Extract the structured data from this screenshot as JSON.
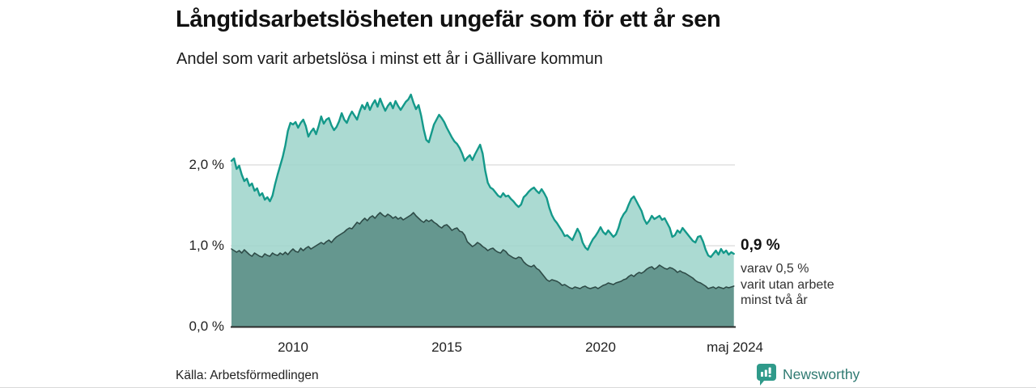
{
  "header": {
    "title": "Långtidsarbetslösheten ungefär som för ett år sen",
    "subtitle": "Andel som varit arbetslösa i minst ett år i Gällivare kommun"
  },
  "annotation": {
    "value": "0,9 %",
    "line1": "varav 0,5 %",
    "line2": "varit utan arbete",
    "line3": "minst två år"
  },
  "source": {
    "label": "Källa: Arbetsförmedlingen"
  },
  "branding": {
    "name": "Newsworthy"
  },
  "colors": {
    "accent_teal": "#14998a",
    "area_light": "#9cd3ca",
    "area_dark": "#61948b",
    "line_dark": "#2e4b47",
    "grid": "#d9d9d9",
    "axis": "#2b2b2b",
    "brand_teal": "#2f7a72",
    "brand_icon": "#2f9a8a"
  },
  "chart_data": {
    "type": "area",
    "title": "Långtidsarbetslösheten ungefär som för ett år sen",
    "subtitle": "Andel som varit arbetslösa i minst ett år i Gällivare kommun",
    "unit": "%",
    "grid": true,
    "legend": "none (annotated at line end)",
    "x_start_year": 2008.0,
    "x_step_months": 1,
    "x_end_label": "maj 2024",
    "xlim": [
      2008.0,
      2024.417
    ],
    "ylim": [
      0,
      2.95
    ],
    "y_ticks": [
      {
        "label": "0,0 %",
        "value": 0
      },
      {
        "label": "1,0 %",
        "value": 1
      },
      {
        "label": "2,0 %",
        "value": 2
      }
    ],
    "x_ticks": [
      {
        "label": "2010",
        "year": 2010
      },
      {
        "label": "2015",
        "year": 2015
      },
      {
        "label": "2020",
        "year": 2020
      },
      {
        "label": "maj 2024",
        "year": 2024.37
      }
    ],
    "series": [
      {
        "name": "Arbetslösa minst ett år",
        "latest_label": "0,9 %",
        "stroke": "#14998a",
        "stroke_width": 2.4,
        "fill": "#9cd3ca",
        "fill_opacity": 0.85,
        "values": [
          2.05,
          2.08,
          1.95,
          1.99,
          1.88,
          1.8,
          1.83,
          1.74,
          1.77,
          1.68,
          1.71,
          1.62,
          1.65,
          1.57,
          1.6,
          1.55,
          1.62,
          1.76,
          1.88,
          1.99,
          2.1,
          2.24,
          2.42,
          2.52,
          2.5,
          2.53,
          2.46,
          2.52,
          2.56,
          2.48,
          2.35,
          2.41,
          2.45,
          2.38,
          2.48,
          2.6,
          2.51,
          2.56,
          2.58,
          2.49,
          2.43,
          2.47,
          2.54,
          2.64,
          2.56,
          2.52,
          2.6,
          2.66,
          2.61,
          2.56,
          2.66,
          2.74,
          2.69,
          2.77,
          2.68,
          2.75,
          2.8,
          2.72,
          2.82,
          2.74,
          2.67,
          2.73,
          2.77,
          2.7,
          2.79,
          2.73,
          2.68,
          2.73,
          2.78,
          2.81,
          2.87,
          2.77,
          2.69,
          2.74,
          2.61,
          2.44,
          2.31,
          2.28,
          2.39,
          2.5,
          2.56,
          2.62,
          2.58,
          2.53,
          2.46,
          2.4,
          2.34,
          2.29,
          2.26,
          2.21,
          2.14,
          2.05,
          2.09,
          2.12,
          2.06,
          2.13,
          2.19,
          2.25,
          2.14,
          1.93,
          1.78,
          1.72,
          1.7,
          1.66,
          1.62,
          1.6,
          1.65,
          1.61,
          1.62,
          1.58,
          1.55,
          1.51,
          1.48,
          1.51,
          1.6,
          1.63,
          1.67,
          1.7,
          1.72,
          1.68,
          1.65,
          1.7,
          1.65,
          1.59,
          1.47,
          1.38,
          1.32,
          1.28,
          1.23,
          1.18,
          1.12,
          1.13,
          1.1,
          1.07,
          1.14,
          1.21,
          1.15,
          1.04,
          0.98,
          0.95,
          1.02,
          1.08,
          1.12,
          1.17,
          1.23,
          1.17,
          1.14,
          1.19,
          1.15,
          1.11,
          1.14,
          1.22,
          1.33,
          1.39,
          1.43,
          1.51,
          1.58,
          1.61,
          1.55,
          1.49,
          1.43,
          1.33,
          1.27,
          1.31,
          1.37,
          1.33,
          1.35,
          1.37,
          1.32,
          1.34,
          1.28,
          1.22,
          1.11,
          1.13,
          1.19,
          1.16,
          1.22,
          1.18,
          1.14,
          1.1,
          1.06,
          1.04,
          1.11,
          1.12,
          1.05,
          0.95,
          0.88,
          0.86,
          0.9,
          0.94,
          0.89,
          0.96,
          0.91,
          0.94,
          0.89,
          0.92,
          0.9
        ]
      },
      {
        "name": "Varav utan arbete minst två år",
        "latest_label": "0,5 %",
        "stroke": "#2e4b47",
        "stroke_width": 1.6,
        "fill": "#61948b",
        "fill_opacity": 0.95,
        "values": [
          0.96,
          0.94,
          0.92,
          0.94,
          0.91,
          0.95,
          0.92,
          0.89,
          0.87,
          0.91,
          0.89,
          0.87,
          0.86,
          0.9,
          0.88,
          0.87,
          0.91,
          0.89,
          0.88,
          0.91,
          0.89,
          0.92,
          0.89,
          0.93,
          0.96,
          0.93,
          0.92,
          0.97,
          0.94,
          0.97,
          0.99,
          0.96,
          0.98,
          1.0,
          1.02,
          1.04,
          1.02,
          1.05,
          1.07,
          1.04,
          1.08,
          1.11,
          1.13,
          1.15,
          1.17,
          1.2,
          1.22,
          1.21,
          1.25,
          1.29,
          1.27,
          1.31,
          1.34,
          1.31,
          1.35,
          1.37,
          1.34,
          1.38,
          1.41,
          1.38,
          1.36,
          1.39,
          1.37,
          1.34,
          1.36,
          1.33,
          1.35,
          1.32,
          1.34,
          1.36,
          1.38,
          1.41,
          1.37,
          1.34,
          1.31,
          1.29,
          1.32,
          1.3,
          1.32,
          1.29,
          1.27,
          1.24,
          1.22,
          1.25,
          1.26,
          1.23,
          1.19,
          1.21,
          1.22,
          1.18,
          1.17,
          1.13,
          1.05,
          1.02,
          0.99,
          1.01,
          1.04,
          1.02,
          0.99,
          0.97,
          0.94,
          0.96,
          0.97,
          0.94,
          0.92,
          0.91,
          0.95,
          0.93,
          0.89,
          0.87,
          0.85,
          0.84,
          0.86,
          0.85,
          0.8,
          0.77,
          0.75,
          0.74,
          0.76,
          0.72,
          0.7,
          0.66,
          0.62,
          0.58,
          0.56,
          0.58,
          0.57,
          0.56,
          0.54,
          0.51,
          0.52,
          0.5,
          0.48,
          0.47,
          0.49,
          0.48,
          0.47,
          0.49,
          0.5,
          0.48,
          0.47,
          0.48,
          0.49,
          0.47,
          0.49,
          0.51,
          0.52,
          0.54,
          0.53,
          0.52,
          0.54,
          0.55,
          0.56,
          0.58,
          0.59,
          0.62,
          0.64,
          0.62,
          0.65,
          0.67,
          0.66,
          0.68,
          0.71,
          0.73,
          0.74,
          0.71,
          0.73,
          0.76,
          0.74,
          0.72,
          0.71,
          0.73,
          0.72,
          0.7,
          0.67,
          0.69,
          0.67,
          0.66,
          0.64,
          0.62,
          0.6,
          0.57,
          0.55,
          0.54,
          0.52,
          0.5,
          0.47,
          0.48,
          0.49,
          0.47,
          0.49,
          0.48,
          0.47,
          0.49,
          0.48,
          0.49,
          0.5
        ]
      }
    ]
  }
}
